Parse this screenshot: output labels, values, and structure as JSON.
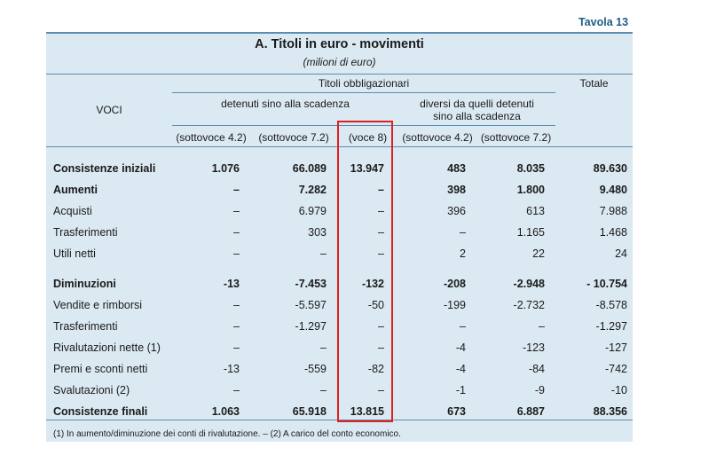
{
  "tavola": "Tavola 13",
  "title": "A. Titoli in euro - movimenti",
  "subtitle": "(milioni di euro)",
  "headers": {
    "voci": "VOCI",
    "titoli_obbligazionari": "Titoli obbligazionari",
    "totale": "Totale",
    "detenuti": "detenuti sino alla scadenza",
    "diversi_line1": "diversi da quelli detenuti",
    "diversi_line2": "sino alla scadenza",
    "sub": [
      "(sottovoce 4.2)",
      "(sottovoce 7.2)",
      "(voce 8)",
      "(sottovoce 4.2)",
      "(sottovoce 7.2)"
    ]
  },
  "rows": [
    {
      "label": "Consistenze iniziali",
      "bold": true,
      "values": [
        "1.076",
        "66.089",
        "13.947",
        "483",
        "8.035",
        "89.630"
      ]
    },
    {
      "label": "Aumenti",
      "bold": true,
      "values": [
        "–",
        "7.282",
        "–",
        "398",
        "1.800",
        "9.480"
      ]
    },
    {
      "label": "Acquisti",
      "bold": false,
      "values": [
        "–",
        "6.979",
        "–",
        "396",
        "613",
        "7.988"
      ]
    },
    {
      "label": "Trasferimenti",
      "bold": false,
      "values": [
        "–",
        "303",
        "–",
        "–",
        "1.165",
        "1.468"
      ]
    },
    {
      "label": "Utili netti",
      "bold": false,
      "values": [
        "–",
        "–",
        "–",
        "2",
        "22",
        "24"
      ]
    },
    {
      "label": "Diminuzioni",
      "bold": true,
      "values": [
        "-13",
        "-7.453",
        "-132",
        "-208",
        "-2.948",
        "- 10.754"
      ]
    },
    {
      "label": "Vendite e rimborsi",
      "bold": false,
      "values": [
        "–",
        "-5.597",
        "-50",
        "-199",
        "-2.732",
        "-8.578"
      ]
    },
    {
      "label": "Trasferimenti",
      "bold": false,
      "values": [
        "–",
        "-1.297",
        "–",
        "–",
        "–",
        "-1.297"
      ]
    },
    {
      "label": "Rivalutazioni nette (1)",
      "bold": false,
      "values": [
        "–",
        "–",
        "–",
        "-4",
        "-123",
        "-127"
      ]
    },
    {
      "label": "Premi e sconti netti",
      "bold": false,
      "values": [
        "-13",
        "-559",
        "-82",
        "-4",
        "-84",
        "-742"
      ]
    },
    {
      "label": "Svalutazioni (2)",
      "bold": false,
      "values": [
        "–",
        "–",
        "–",
        "-1",
        "-9",
        "-10"
      ]
    },
    {
      "label": "Consistenze finali",
      "bold": true,
      "values": [
        "1.063",
        "65.918",
        "13.815",
        "673",
        "6.887",
        "88.356"
      ]
    }
  ],
  "footnote": "(1) In aumento/diminuzione dei conti di rivalutazione. – (2) A carico del conto economico.",
  "colors": {
    "panel": "#dbe9f2",
    "rule": "#5a8db0",
    "title_blue": "#1f5d88",
    "highlight": "#e02020"
  }
}
